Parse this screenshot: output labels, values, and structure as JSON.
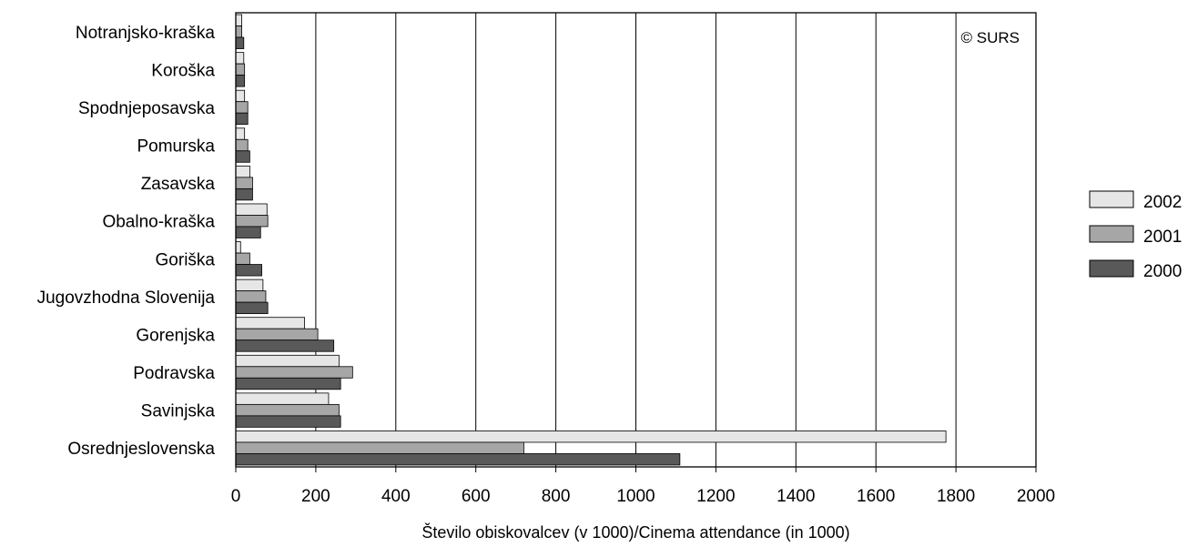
{
  "chart_data": {
    "type": "bar",
    "orientation": "horizontal",
    "categories": [
      "Notranjsko-kraška",
      "Koroška",
      "Spodnjeposavska",
      "Pomurska",
      "Zasavska",
      "Obalno-kraška",
      "Goriška",
      "Jugovzhodna Slovenija",
      "Gorenjska",
      "Podravska",
      "Savinjska",
      "Osrednjeslovenska"
    ],
    "series": [
      {
        "name": "2002",
        "color": "#e6e6e6",
        "values": [
          15,
          20,
          22,
          22,
          35,
          78,
          12,
          68,
          172,
          258,
          232,
          1775
        ]
      },
      {
        "name": "2001",
        "color": "#a6a6a6",
        "values": [
          15,
          22,
          30,
          30,
          42,
          80,
          35,
          75,
          205,
          292,
          258,
          720
        ]
      },
      {
        "name": "2000",
        "color": "#595959",
        "values": [
          20,
          22,
          30,
          35,
          42,
          62,
          65,
          80,
          245,
          262,
          262,
          1110
        ]
      }
    ],
    "xlim": [
      0,
      2000
    ],
    "x_ticks": [
      "0",
      "200",
      "400",
      "600",
      "800",
      "1000",
      "1200",
      "1400",
      "1600",
      "1800",
      "2000"
    ],
    "xlabel": "Število obiskovalcev (v 1000)/Cinema attendance (in 1000)",
    "ylabel": "",
    "title": "",
    "grid": "vertical",
    "legend_position": "right",
    "annotation": "© SURS"
  }
}
